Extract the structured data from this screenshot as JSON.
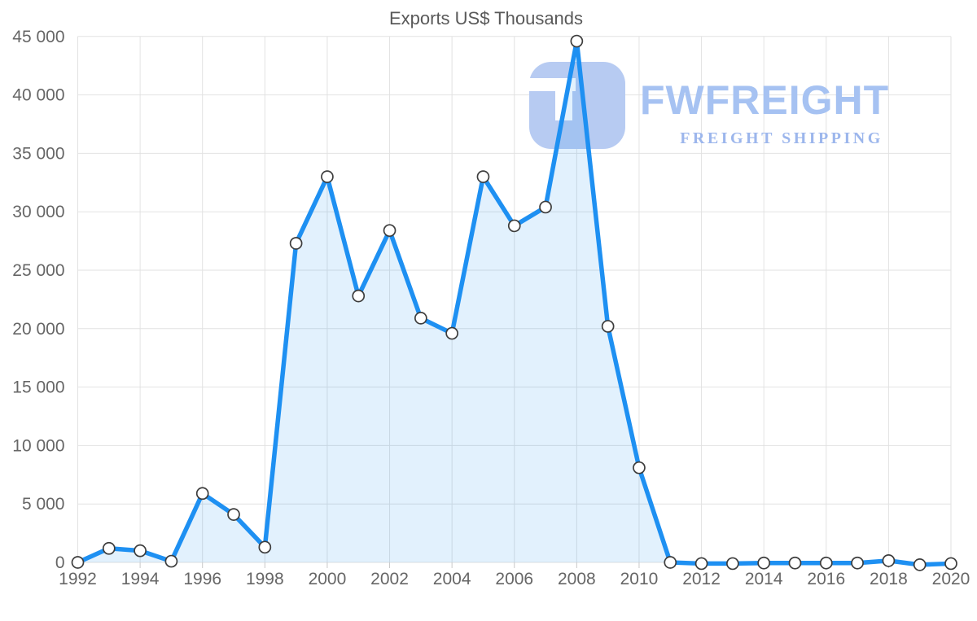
{
  "page": {
    "background": "#ffffff"
  },
  "chart_data": {
    "type": "area",
    "title": "Exports US$ Thousands",
    "xlabel": "",
    "ylabel": "",
    "x": [
      1992,
      1993,
      1994,
      1995,
      1996,
      1997,
      1998,
      1999,
      2000,
      2001,
      2002,
      2003,
      2004,
      2005,
      2006,
      2007,
      2008,
      2009,
      2010,
      2011,
      2012,
      2013,
      2014,
      2015,
      2016,
      2017,
      2018,
      2019,
      2020
    ],
    "series": [
      {
        "name": "Exports US$ Thousands",
        "values": [
          0,
          1200,
          1000,
          100,
          5900,
          4100,
          1300,
          27300,
          33000,
          22800,
          28400,
          20900,
          19600,
          33000,
          28800,
          30400,
          44600,
          20200,
          8100,
          0,
          -100,
          -100,
          -50,
          -50,
          -50,
          -50,
          150,
          -200,
          -100
        ]
      }
    ],
    "xlim": [
      1992,
      2020
    ],
    "ylim": [
      0,
      45000
    ],
    "xticks": [
      1992,
      1994,
      1996,
      1998,
      2000,
      2002,
      2004,
      2006,
      2008,
      2010,
      2012,
      2014,
      2016,
      2018,
      2020
    ],
    "xtick_labels": [
      "1992",
      "1994",
      "1996",
      "1998",
      "2000",
      "2002",
      "2004",
      "2006",
      "2008",
      "2010",
      "2012",
      "2014",
      "2016",
      "2018",
      "2020"
    ],
    "yticks": [
      0,
      5000,
      10000,
      15000,
      20000,
      25000,
      30000,
      35000,
      40000,
      45000
    ],
    "ytick_labels": [
      "0",
      "5 000",
      "10 000",
      "15 000",
      "20 000",
      "25 000",
      "30 000",
      "35 000",
      "40 000",
      "45 000"
    ],
    "grid": true,
    "legend": "none",
    "marker_shape": "circle",
    "colors": {
      "line": "#1e90f2",
      "area_fill": "rgba(30,144,242,0.13)",
      "gridline": "#e2e2e2",
      "tick": "#c9c9c9",
      "axis_label": "#666666",
      "title": "#595959",
      "marker_fill": "#ffffff",
      "marker_stroke": "#3d3d3d"
    }
  },
  "watermark": {
    "brand": "FWFREIGHT",
    "tagline": "FREIGHT SHIPPING",
    "brand_color": "#a6c2f2",
    "tagline_color": "#9cb6ec",
    "icon_color": "#b7cbf2"
  }
}
